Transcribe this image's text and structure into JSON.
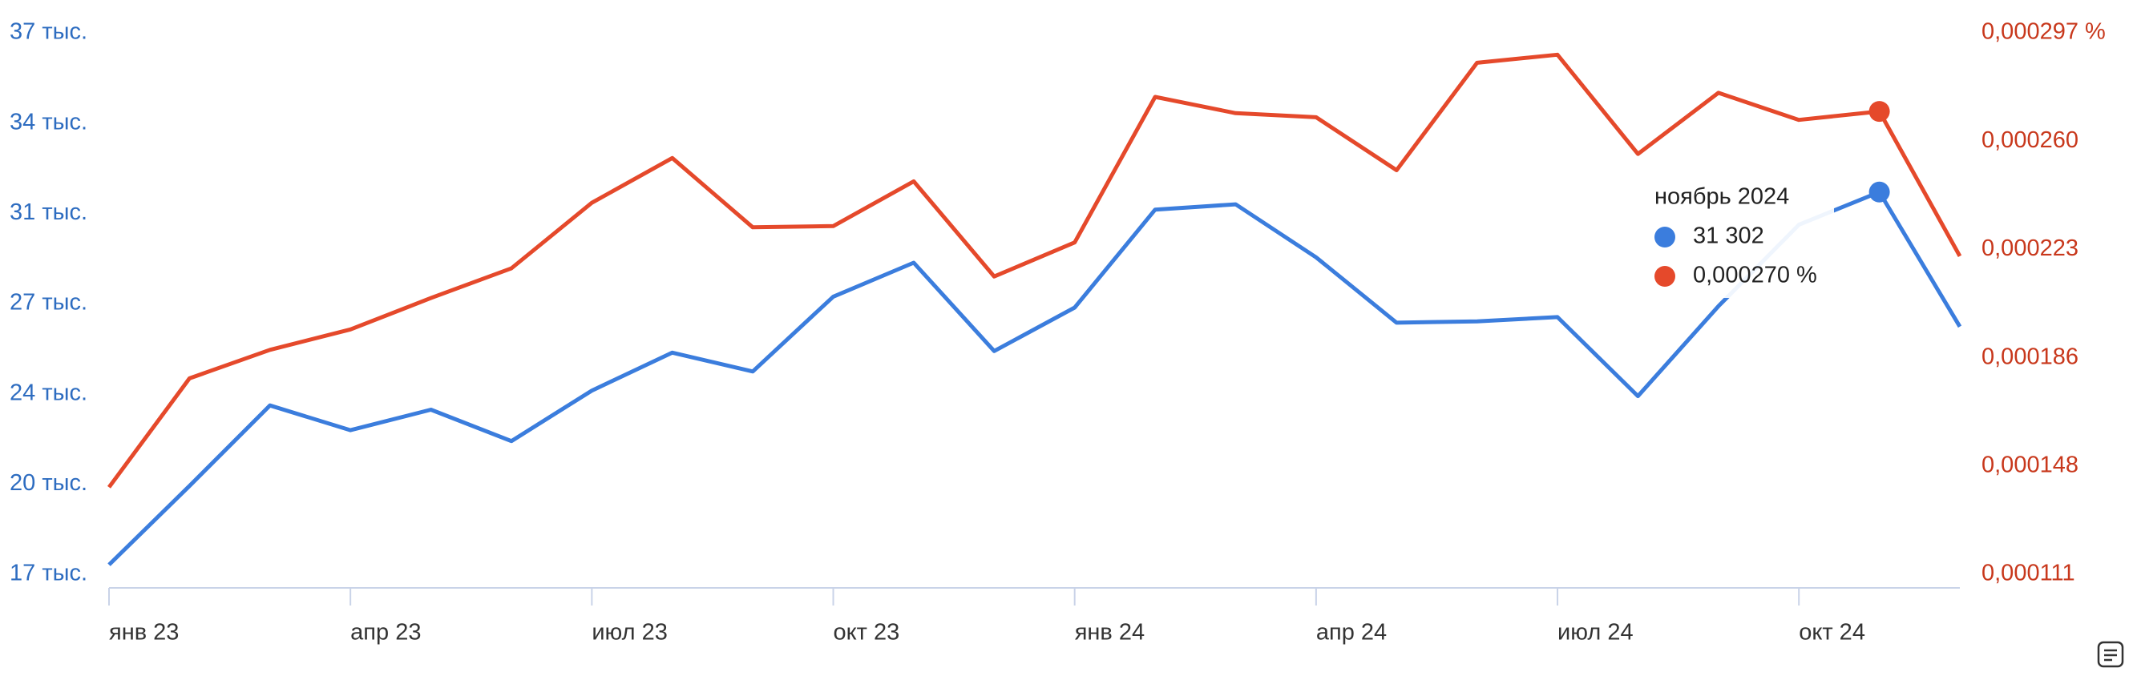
{
  "chart_data": {
    "type": "line",
    "categories": [
      "янв 23",
      null,
      null,
      "апр 23",
      null,
      null,
      "июл 23",
      null,
      null,
      "окт 23",
      null,
      null,
      "янв 24",
      null,
      null,
      "апр 24",
      null,
      null,
      "июл 24",
      null,
      null,
      "окт 24",
      null,
      null
    ],
    "series": [
      {
        "name": "31 302",
        "color": "#3b7ddd",
        "values": [
          17260,
          20230,
          23260,
          22330,
          23100,
          21920,
          23820,
          25250,
          24540,
          27360,
          28640,
          25310,
          26950,
          30640,
          30840,
          28840,
          26380,
          26430,
          26590,
          23610,
          27000,
          30070,
          31302,
          26230
        ],
        "value_labels": [
          null,
          null,
          null,
          null,
          null,
          null,
          null,
          null,
          null,
          null,
          null,
          null,
          null,
          null,
          null,
          null,
          null,
          null,
          null,
          null,
          null,
          null,
          "31 302",
          null
        ]
      },
      {
        "name": "0,000270 %",
        "color": "#e5492b",
        "axis": "y2",
        "values": [
          0.0001409,
          0.0001783,
          0.0001881,
          0.0001951,
          0.0002059,
          0.0002161,
          0.0002386,
          0.000254,
          0.0002302,
          0.0002306,
          0.000246,
          0.0002133,
          0.000225,
          0.000275,
          0.0002694,
          0.000268,
          0.0002498,
          0.0002867,
          0.0002895,
          0.0002554,
          0.0002764,
          0.0002671,
          0.00027,
          0.0002203
        ],
        "value_labels": [
          null,
          null,
          null,
          null,
          null,
          null,
          null,
          null,
          null,
          null,
          null,
          null,
          null,
          null,
          null,
          null,
          null,
          null,
          null,
          null,
          null,
          null,
          "0,000270 %",
          null
        ]
      }
    ],
    "tooltip_title": "ноябрь 2024",
    "ylim": [
      16900,
      37300
    ],
    "yticks": [
      {
        "value": 16900,
        "label": "17 тыс."
      },
      {
        "value": 20300,
        "label": "20 тыс."
      },
      {
        "value": 23700,
        "label": "24 тыс."
      },
      {
        "value": 27100,
        "label": "27 тыс."
      },
      {
        "value": 30500,
        "label": "31 тыс."
      },
      {
        "value": 33900,
        "label": "34 тыс."
      },
      {
        "value": 37300,
        "label": "37 тыс."
      }
    ],
    "y2lim": [
      0.000111,
      0.000297
    ],
    "y2ticks": [
      {
        "value": 0.000111,
        "label": "0,000111"
      },
      {
        "value": 0.0001482,
        "label": "0,000148"
      },
      {
        "value": 0.0001854,
        "label": "0,000186"
      },
      {
        "value": 0.0002226,
        "label": "0,000223"
      },
      {
        "value": 0.0002598,
        "label": "0,000260"
      },
      {
        "value": 0.000297,
        "label": "0,000297 %"
      }
    ],
    "grid": false
  }
}
